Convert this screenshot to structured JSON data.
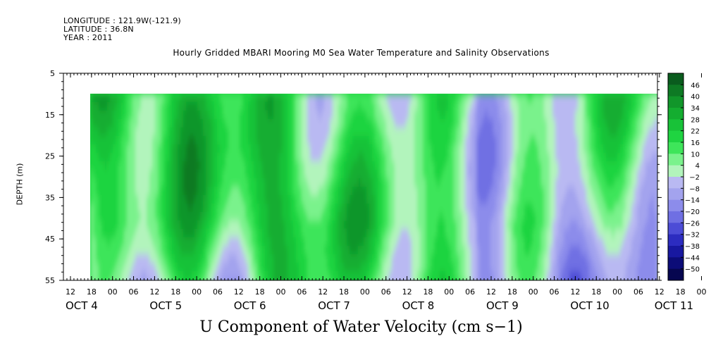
{
  "meta": {
    "longitude": "LONGITUDE : 121.9W(-121.9)",
    "latitude": "LATITUDE : 36.8N",
    "year": "YEAR : 2011"
  },
  "chart_data": {
    "type": "heatmap",
    "title": "Hourly Gridded MBARI Mooring M0 Sea Water Temperature and Salinity Observations",
    "xlabel": "",
    "ylabel": "DEPTH (m)",
    "bottom_title": "U Component of Water Velocity (cm s−1)",
    "ylim": [
      55,
      5
    ],
    "y_ticks": [
      5,
      15,
      25,
      35,
      45,
      55
    ],
    "y_tick_labels": [
      "5",
      "15",
      "25",
      "35",
      "45",
      "55"
    ],
    "data_depth_range": [
      10,
      55
    ],
    "x_hour_ticks": [
      "12",
      "18",
      "00",
      "06",
      "12",
      "18",
      "00",
      "06",
      "12",
      "18",
      "00",
      "06",
      "12",
      "18",
      "00",
      "06",
      "12",
      "18",
      "00",
      "06",
      "12",
      "18",
      "00",
      "06",
      "12",
      "18",
      "00",
      "06",
      "12",
      "18",
      "00",
      "06"
    ],
    "x_day_labels": [
      "OCT  4",
      "OCT  5",
      "OCT  6",
      "OCT  7",
      "OCT  8",
      "OCT  9",
      "OCT 10",
      "OCT 11"
    ],
    "colorbar": {
      "labels": [
        "46",
        "40",
        "34",
        "28",
        "22",
        "16",
        "10",
        "4",
        "−2",
        "−8",
        "−14",
        "−20",
        "−26",
        "−32",
        "−38",
        "−44",
        "−50"
      ],
      "min": -50,
      "max": 50,
      "colors_high_to_low": [
        "#0a5c1e",
        "#0e7a24",
        "#11962a",
        "#14ad30",
        "#18c238",
        "#1fd441",
        "#3ee55a",
        "#7af28c",
        "#b2f4bc",
        "#b9b9f2",
        "#a3a3ee",
        "#8c8ceb",
        "#6f6fe3",
        "#4c4cd6",
        "#2c2cc0",
        "#1818a0",
        "#0c0c78",
        "#060650"
      ]
    },
    "series_note_colors": {
      "positive": "#1fd441",
      "negative": "#a3a3ee"
    }
  }
}
